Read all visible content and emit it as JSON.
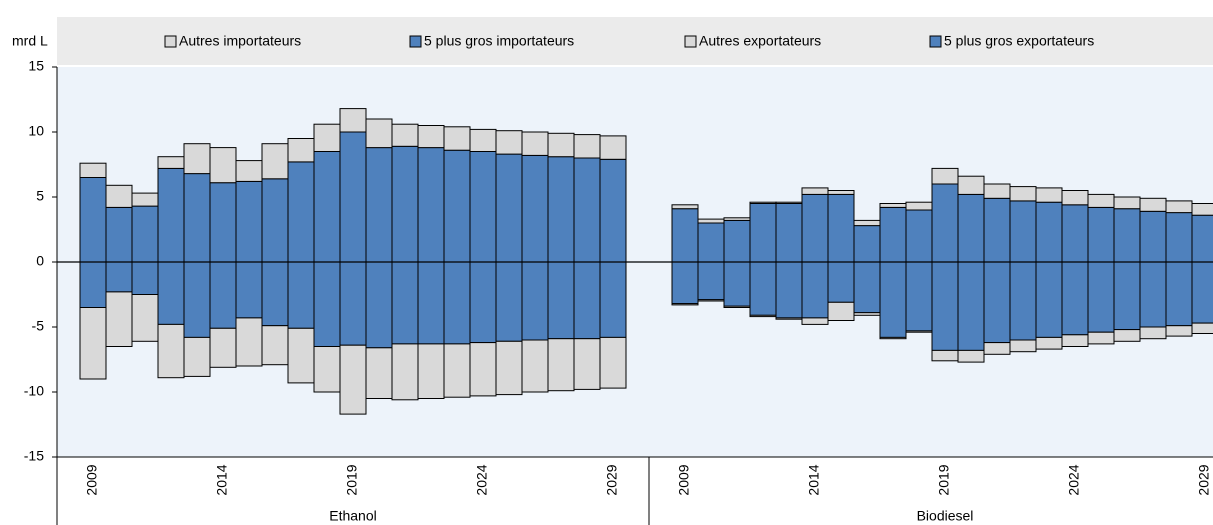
{
  "chart_data": {
    "type": "bar",
    "y_axis_label": "mrd L",
    "ylim": [
      -15,
      15
    ],
    "yticks": [
      -15,
      -10,
      -5,
      0,
      5,
      10,
      15
    ],
    "groups": [
      {
        "label": "Ethanol",
        "categories": [
          "2009",
          null,
          null,
          null,
          null,
          "2014",
          null,
          null,
          null,
          null,
          "2019",
          null,
          null,
          null,
          null,
          "2024",
          null,
          null,
          null,
          null,
          "2029"
        ]
      },
      {
        "label": "Biodiesel",
        "categories": [
          "2009",
          null,
          null,
          null,
          null,
          "2014",
          null,
          null,
          null,
          null,
          "2019",
          null,
          null,
          null,
          null,
          "2024",
          null,
          null,
          null,
          null,
          "2029"
        ]
      }
    ],
    "series": [
      {
        "name": "Autres importateurs",
        "color": "#d9d9d9",
        "values": [
          1.1,
          1.7,
          1.0,
          0.9,
          2.3,
          2.7,
          1.6,
          2.7,
          1.8,
          2.1,
          1.8,
          2.2,
          1.7,
          1.7,
          1.8,
          1.7,
          1.8,
          1.8,
          1.8,
          1.8,
          1.8,
          0.3,
          0.3,
          0.2,
          0.1,
          0.1,
          0.5,
          0.3,
          0.4,
          0.3,
          0.6,
          1.2,
          1.4,
          1.1,
          1.1,
          1.1,
          1.1,
          1.0,
          0.9,
          1.0,
          0.9,
          0.9
        ]
      },
      {
        "name": "5 plus gros importateurs",
        "color": "#4f81bd",
        "values": [
          6.5,
          4.2,
          4.3,
          7.2,
          6.8,
          6.1,
          6.2,
          6.4,
          7.7,
          8.5,
          10.0,
          8.8,
          8.9,
          8.8,
          8.6,
          8.5,
          8.3,
          8.2,
          8.1,
          8.0,
          7.9,
          4.1,
          3.0,
          3.2,
          4.5,
          4.5,
          5.2,
          5.2,
          2.8,
          4.2,
          4.0,
          6.0,
          5.2,
          4.9,
          4.7,
          4.6,
          4.4,
          4.2,
          4.1,
          3.9,
          3.8,
          3.6
        ]
      },
      {
        "name": "Autres exportateurs",
        "color": "#d9d9d9",
        "values": [
          -5.5,
          -4.2,
          -3.6,
          -4.1,
          -3.0,
          -3.0,
          -3.7,
          -3.0,
          -4.2,
          -3.5,
          -5.3,
          -3.9,
          -4.3,
          -4.2,
          -4.1,
          -4.1,
          -4.1,
          -4.0,
          -4.0,
          -3.9,
          -3.9,
          -0.1,
          -0.1,
          -0.1,
          -0.1,
          -0.1,
          -0.5,
          -1.4,
          -0.2,
          -0.1,
          -0.1,
          -0.8,
          -0.9,
          -0.9,
          -0.9,
          -0.9,
          -0.9,
          -0.9,
          -0.9,
          -0.9,
          -0.8,
          -0.8
        ]
      },
      {
        "name": "5 plus gros exportateurs",
        "color": "#4f81bd",
        "values": [
          -3.5,
          -2.3,
          -2.5,
          -4.8,
          -5.8,
          -5.1,
          -4.3,
          -4.9,
          -5.1,
          -6.5,
          -6.4,
          -6.6,
          -6.3,
          -6.3,
          -6.3,
          -6.2,
          -6.1,
          -6.0,
          -5.9,
          -5.9,
          -5.8,
          -3.2,
          -2.9,
          -3.4,
          -4.1,
          -4.3,
          -4.3,
          -3.1,
          -3.9,
          -5.8,
          -5.3,
          -6.8,
          -6.8,
          -6.2,
          -6.0,
          -5.8,
          -5.6,
          -5.4,
          -5.2,
          -5.0,
          -4.9,
          -4.7
        ]
      }
    ]
  }
}
